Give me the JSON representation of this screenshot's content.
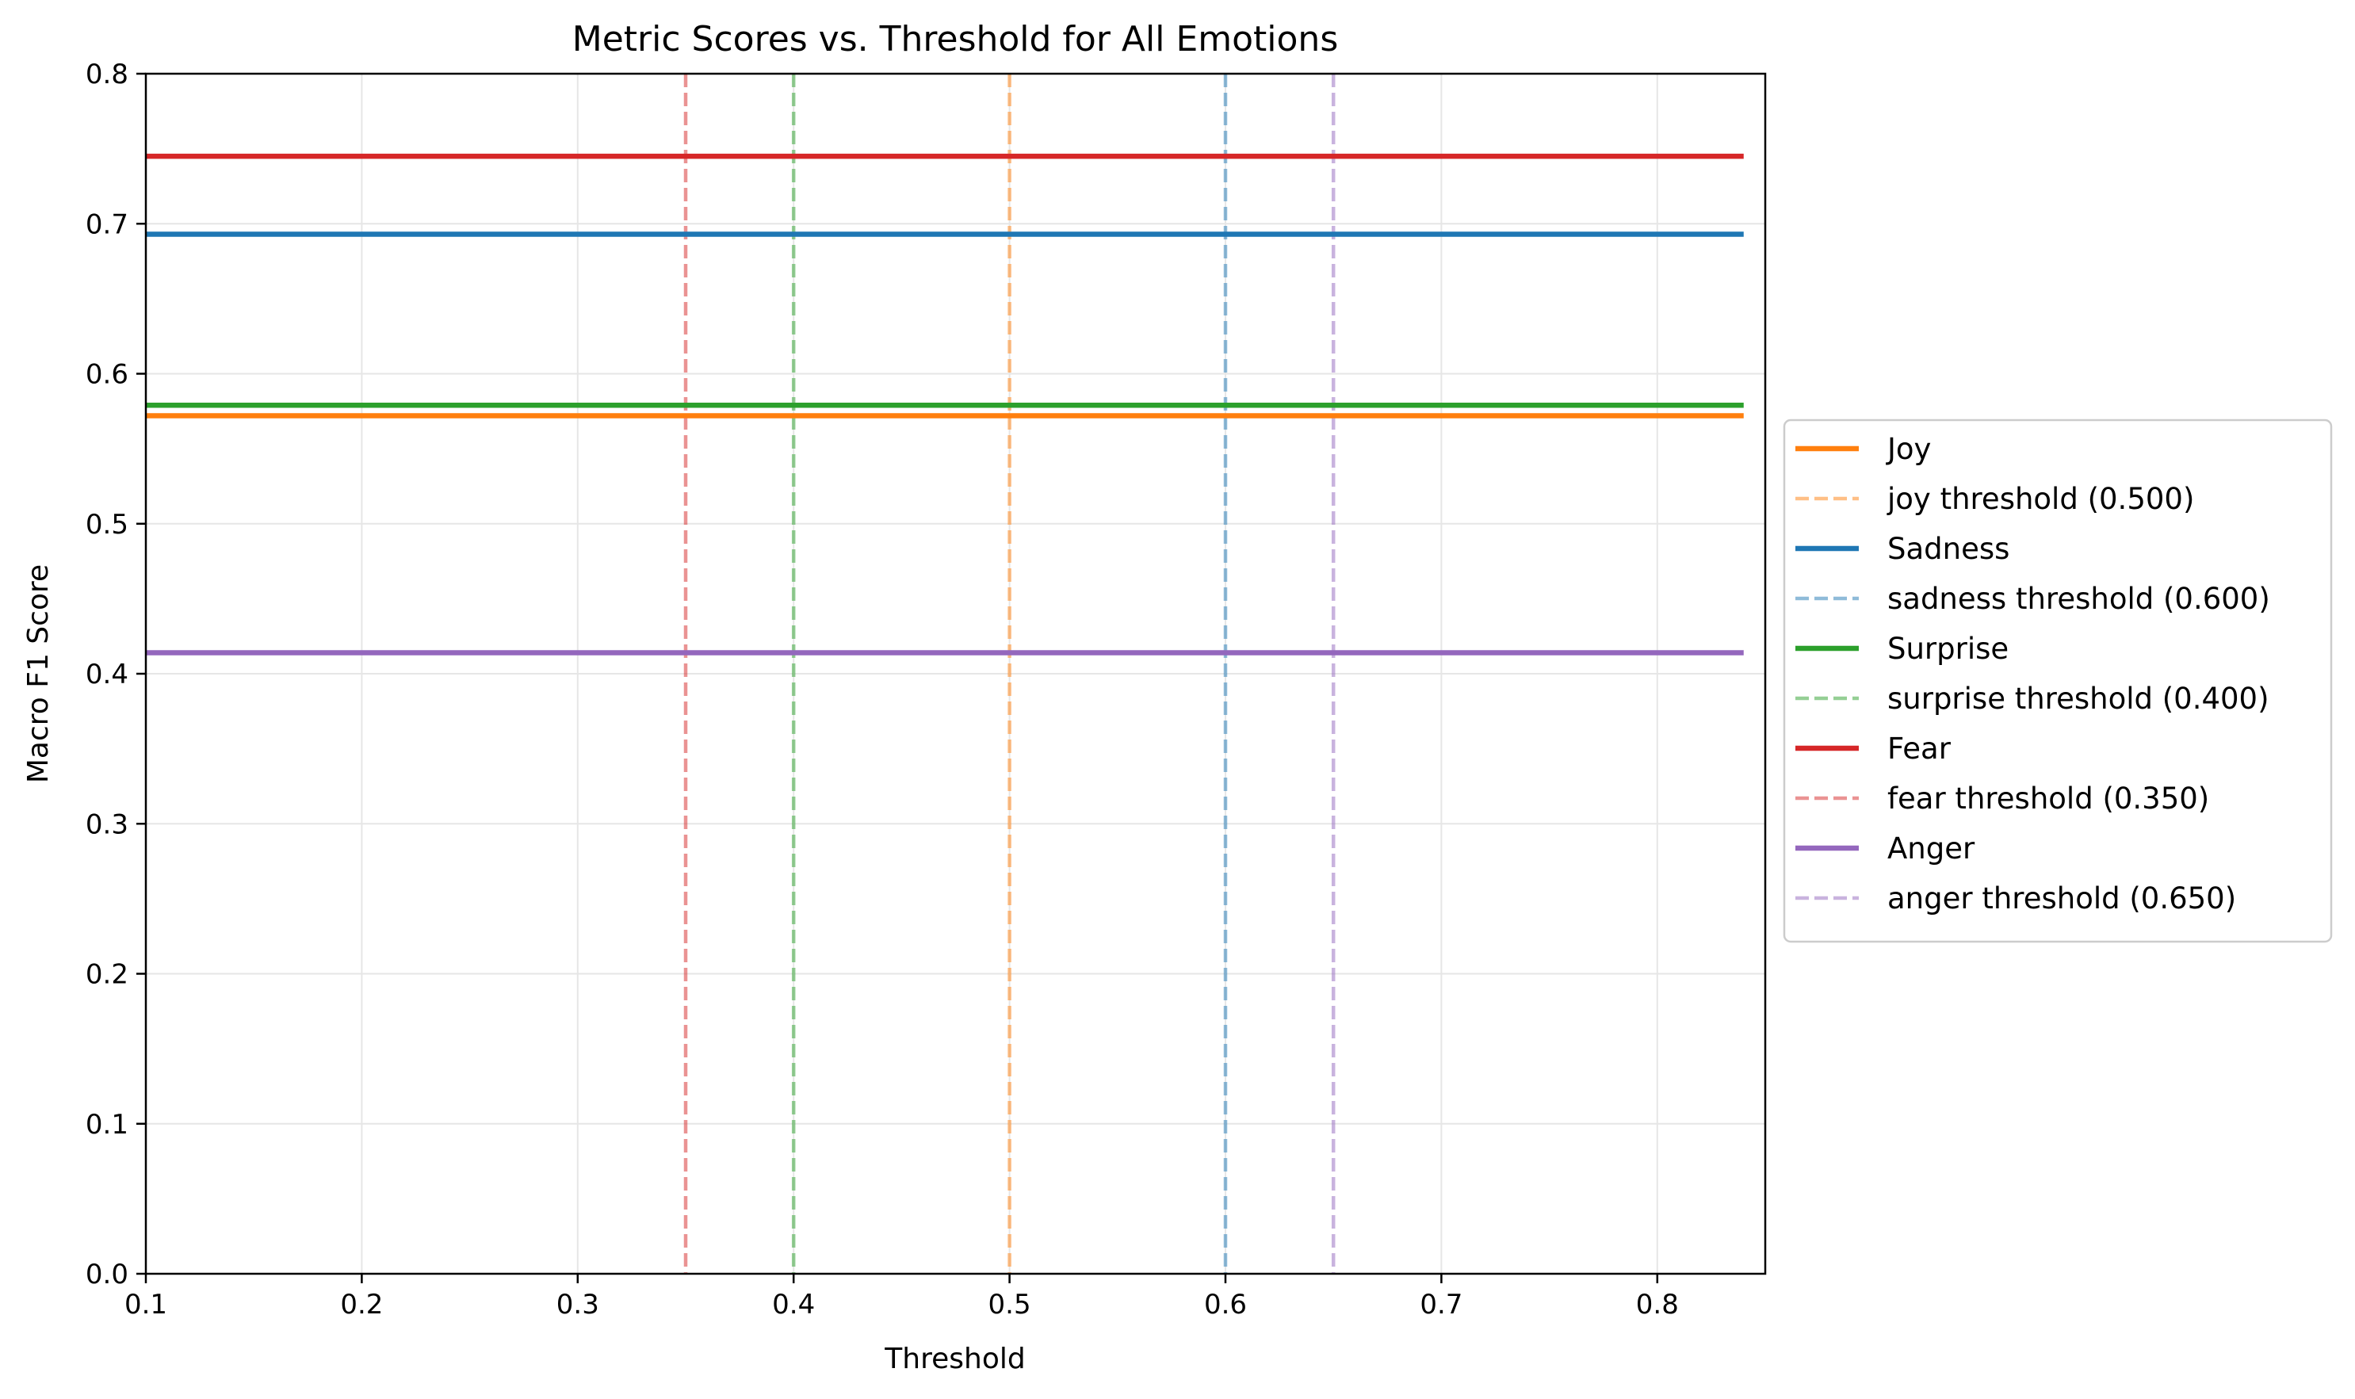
{
  "chart_data": {
    "type": "line",
    "title": "Metric Scores vs. Threshold for All Emotions",
    "xlabel": "Threshold",
    "ylabel": "Macro F1 Score",
    "xlim": [
      0.1,
      0.85
    ],
    "ylim": [
      0.0,
      0.8
    ],
    "xticks": [
      "0.1",
      "0.2",
      "0.3",
      "0.4",
      "0.5",
      "0.6",
      "0.7",
      "0.8"
    ],
    "yticks": [
      "0.0",
      "0.1",
      "0.2",
      "0.3",
      "0.4",
      "0.5",
      "0.6",
      "0.7",
      "0.8"
    ],
    "grid": true,
    "legend_position": "center-right-outside",
    "x_range": [
      0.1,
      0.84
    ],
    "series": [
      {
        "name": "Joy",
        "color": "#ff7f0e",
        "value": 0.572
      },
      {
        "name": "Sadness",
        "color": "#1f77b4",
        "value": 0.693
      },
      {
        "name": "Surprise",
        "color": "#2ca02c",
        "value": 0.579
      },
      {
        "name": "Fear",
        "color": "#d62728",
        "value": 0.745
      },
      {
        "name": "Anger",
        "color": "#9467bd",
        "value": 0.414
      }
    ],
    "thresholds": [
      {
        "name": "joy threshold (0.500)",
        "color": "#ff7f0e",
        "x": 0.5
      },
      {
        "name": "sadness threshold (0.600)",
        "color": "#1f77b4",
        "x": 0.6
      },
      {
        "name": "surprise threshold (0.400)",
        "color": "#2ca02c",
        "x": 0.4
      },
      {
        "name": "fear threshold (0.350)",
        "color": "#d62728",
        "x": 0.35
      },
      {
        "name": "anger threshold (0.650)",
        "color": "#9467bd",
        "x": 0.65
      }
    ]
  }
}
